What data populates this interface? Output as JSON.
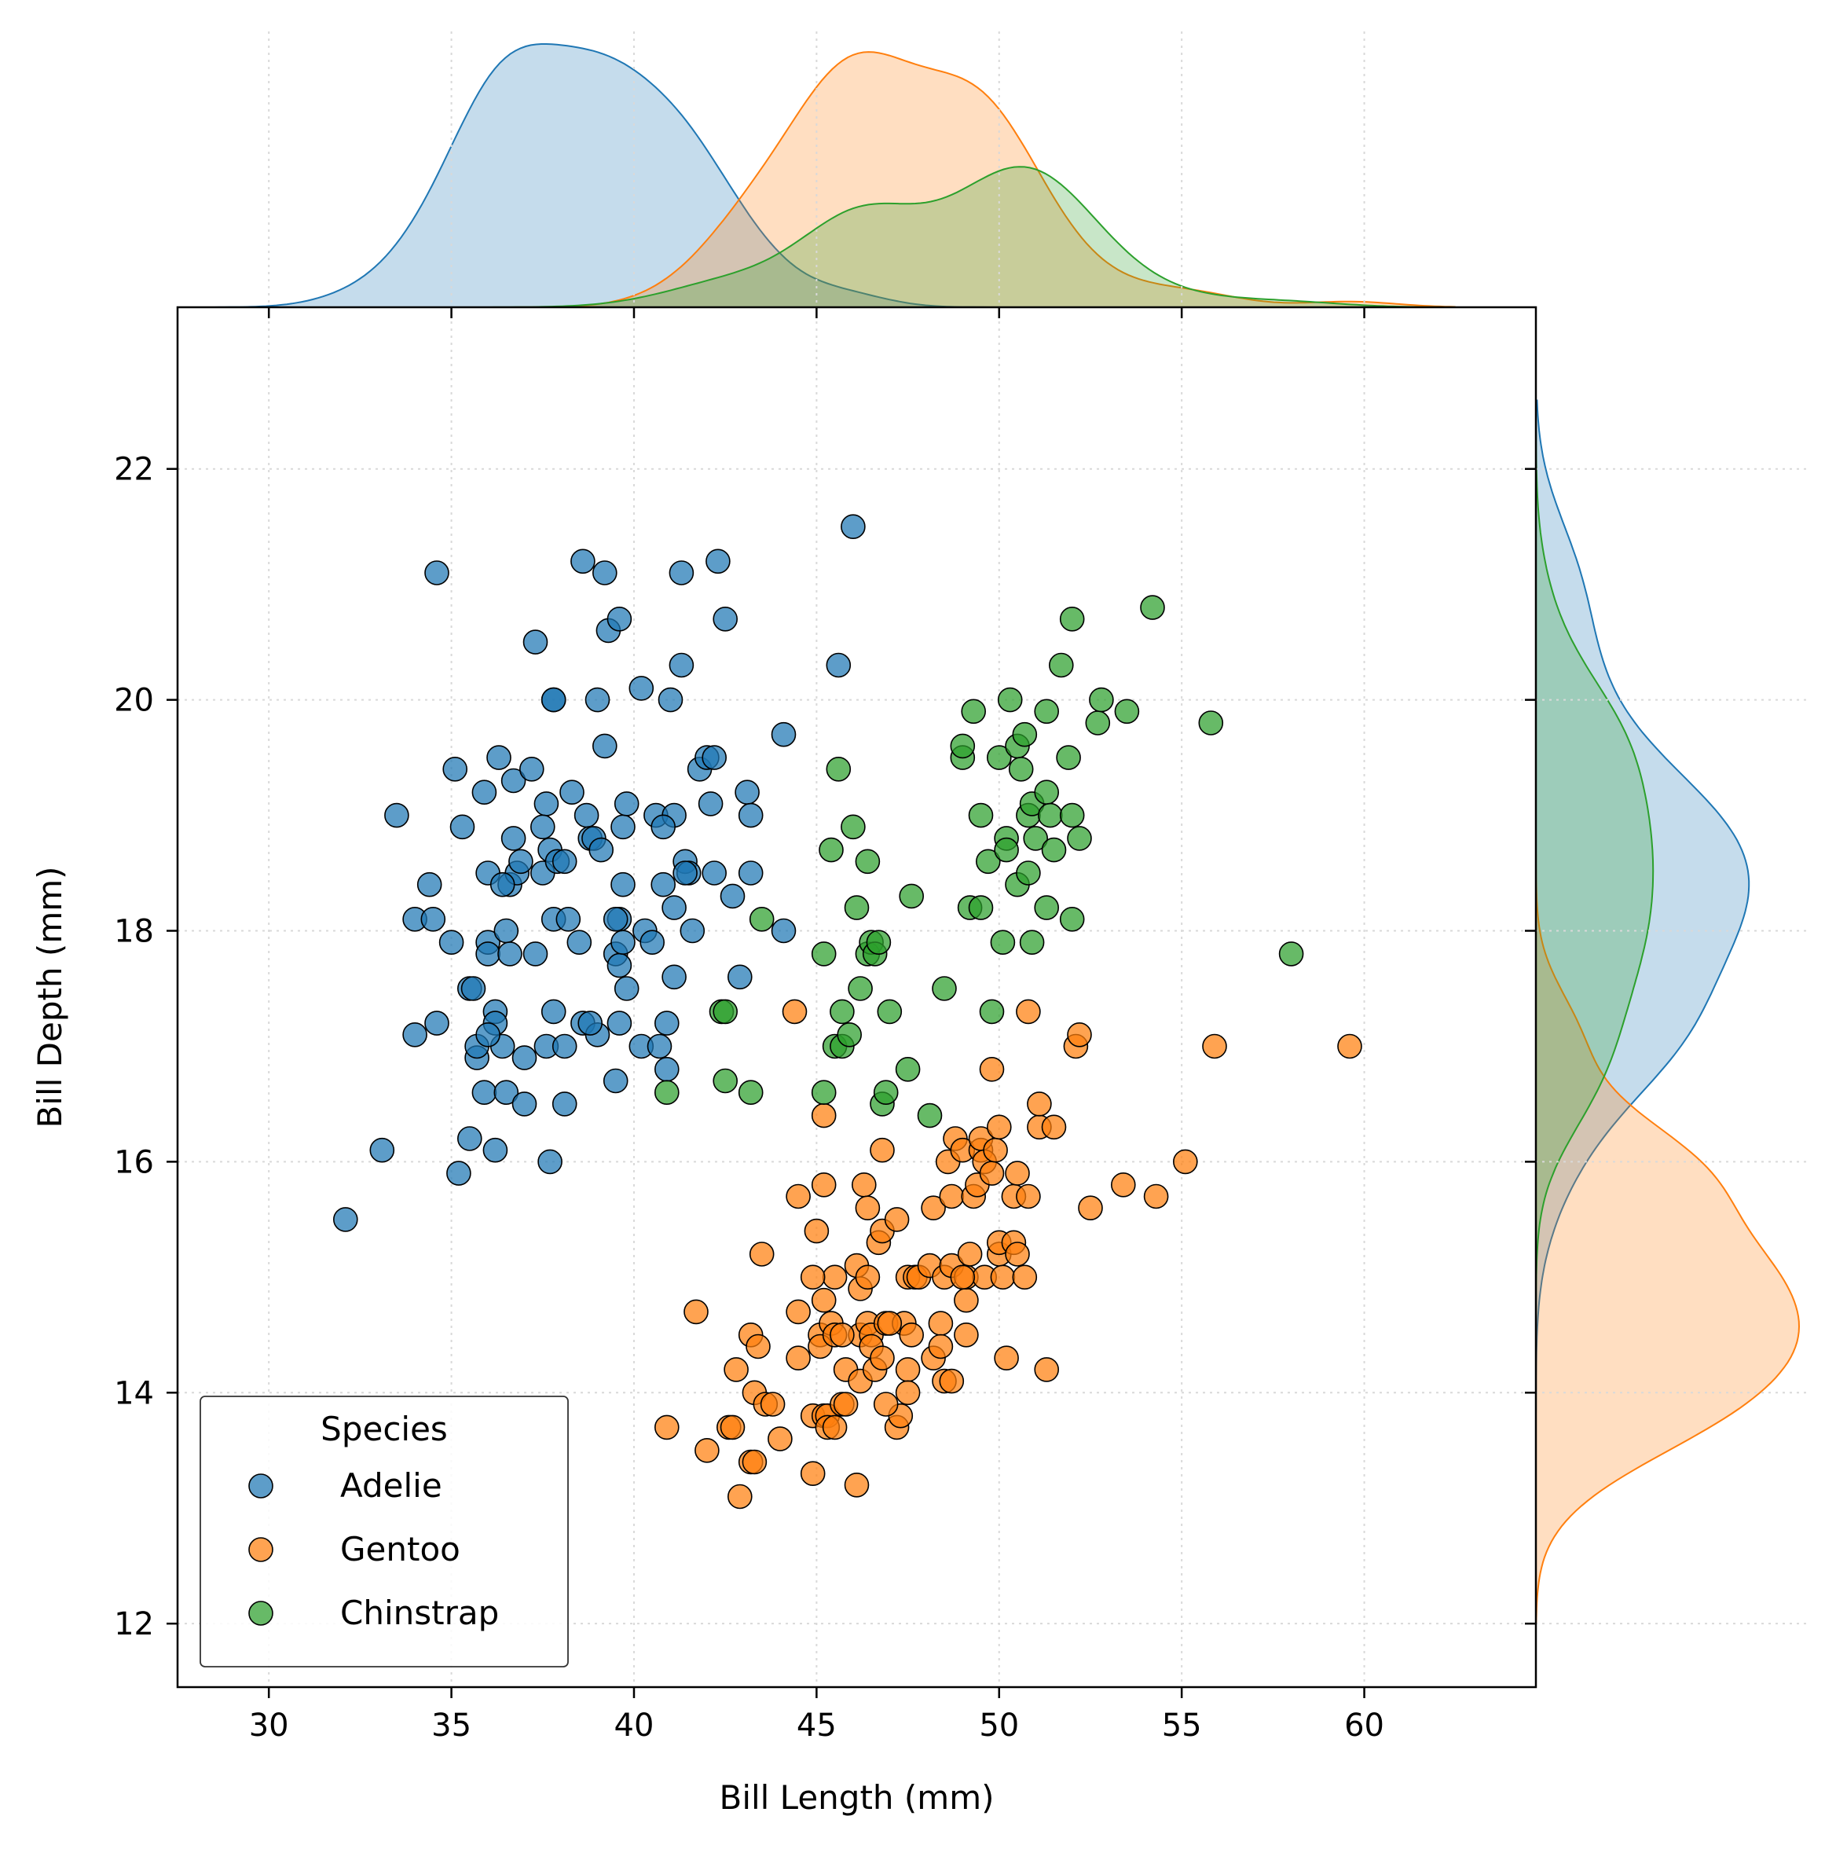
{
  "chart_data": {
    "type": "scatter",
    "xlabel": "Bill Length (mm)",
    "ylabel": "Bill Depth (mm)",
    "xlim": [
      27.5,
      64.7
    ],
    "ylim": [
      11.45,
      23.4
    ],
    "x_ticks": [
      30,
      35,
      40,
      45,
      50,
      55,
      60
    ],
    "y_ticks": [
      12,
      14,
      16,
      18,
      20,
      22
    ],
    "grid": "dotted",
    "marginal": "kde",
    "legend": {
      "title": "Species",
      "placement": "lower-left"
    },
    "series": [
      {
        "name": "Adelie",
        "color": "#1f77b4",
        "points": [
          [
            32.1,
            15.5
          ],
          [
            33.1,
            16.1
          ],
          [
            33.5,
            19.0
          ],
          [
            34.0,
            17.1
          ],
          [
            34.0,
            18.1
          ],
          [
            34.4,
            18.4
          ],
          [
            34.5,
            18.1
          ],
          [
            34.6,
            21.1
          ],
          [
            34.6,
            17.2
          ],
          [
            35.0,
            17.9
          ],
          [
            35.1,
            19.4
          ],
          [
            35.2,
            15.9
          ],
          [
            35.3,
            18.9
          ],
          [
            35.5,
            17.5
          ],
          [
            35.5,
            16.2
          ],
          [
            35.6,
            17.5
          ],
          [
            35.7,
            16.9
          ],
          [
            35.7,
            17.0
          ],
          [
            35.9,
            16.6
          ],
          [
            35.9,
            19.2
          ],
          [
            36.0,
            17.9
          ],
          [
            36.0,
            17.8
          ],
          [
            36.0,
            18.5
          ],
          [
            36.2,
            16.1
          ],
          [
            36.2,
            17.3
          ],
          [
            36.2,
            17.2
          ],
          [
            36.3,
            19.5
          ],
          [
            36.4,
            17.0
          ],
          [
            36.5,
            18.0
          ],
          [
            36.5,
            16.6
          ],
          [
            36.6,
            17.8
          ],
          [
            36.6,
            18.4
          ],
          [
            36.7,
            18.8
          ],
          [
            36.7,
            19.3
          ],
          [
            36.8,
            18.5
          ],
          [
            36.9,
            18.6
          ],
          [
            37.0,
            16.9
          ],
          [
            37.0,
            16.5
          ],
          [
            37.2,
            19.4
          ],
          [
            37.3,
            17.8
          ],
          [
            37.3,
            20.5
          ],
          [
            37.5,
            18.5
          ],
          [
            37.6,
            17.0
          ],
          [
            37.6,
            19.1
          ],
          [
            37.7,
            18.7
          ],
          [
            37.7,
            16.0
          ],
          [
            37.8,
            17.3
          ],
          [
            37.8,
            20.0
          ],
          [
            37.8,
            18.1
          ],
          [
            37.9,
            18.6
          ],
          [
            38.1,
            18.6
          ],
          [
            38.1,
            17.0
          ],
          [
            38.1,
            16.5
          ],
          [
            38.2,
            18.1
          ],
          [
            38.3,
            19.2
          ],
          [
            38.5,
            17.9
          ],
          [
            38.6,
            21.2
          ],
          [
            38.6,
            17.2
          ],
          [
            38.7,
            19.0
          ],
          [
            38.8,
            18.8
          ],
          [
            38.9,
            18.8
          ],
          [
            39.0,
            17.1
          ],
          [
            39.1,
            18.7
          ],
          [
            39.2,
            21.1
          ],
          [
            39.2,
            19.6
          ],
          [
            39.3,
            20.6
          ],
          [
            39.5,
            17.8
          ],
          [
            39.5,
            16.7
          ],
          [
            39.6,
            17.7
          ],
          [
            39.6,
            18.1
          ],
          [
            39.6,
            20.7
          ],
          [
            39.7,
            18.4
          ],
          [
            39.7,
            17.9
          ],
          [
            39.7,
            18.9
          ],
          [
            39.8,
            19.1
          ],
          [
            40.2,
            17.0
          ],
          [
            40.2,
            20.1
          ],
          [
            40.3,
            18.0
          ],
          [
            40.5,
            17.9
          ],
          [
            40.6,
            19.0
          ],
          [
            40.7,
            17.0
          ],
          [
            40.8,
            18.4
          ],
          [
            40.9,
            16.8
          ],
          [
            41.0,
            20.0
          ],
          [
            41.1,
            18.2
          ],
          [
            41.1,
            19.0
          ],
          [
            41.1,
            17.6
          ],
          [
            41.3,
            21.1
          ],
          [
            41.3,
            20.3
          ],
          [
            41.4,
            18.6
          ],
          [
            41.5,
            18.5
          ],
          [
            41.6,
            18.0
          ],
          [
            41.8,
            19.4
          ],
          [
            42.0,
            19.5
          ],
          [
            42.1,
            19.1
          ],
          [
            42.2,
            19.5
          ],
          [
            42.2,
            18.5
          ],
          [
            42.3,
            21.2
          ],
          [
            42.5,
            20.7
          ],
          [
            42.7,
            18.3
          ],
          [
            42.9,
            17.6
          ],
          [
            43.1,
            19.2
          ],
          [
            43.2,
            19.0
          ],
          [
            43.2,
            18.5
          ],
          [
            44.1,
            18.0
          ],
          [
            44.1,
            19.7
          ],
          [
            46.0,
            21.5
          ],
          [
            45.6,
            20.3
          ],
          [
            39.0,
            20.0
          ],
          [
            37.8,
            20.0
          ],
          [
            41.4,
            18.5
          ],
          [
            40.8,
            18.9
          ],
          [
            39.5,
            18.1
          ],
          [
            39.6,
            17.2
          ],
          [
            40.9,
            17.2
          ],
          [
            36.4,
            18.4
          ],
          [
            37.5,
            18.9
          ],
          [
            36.0,
            17.1
          ],
          [
            38.8,
            17.2
          ],
          [
            39.8,
            17.5
          ]
        ]
      },
      {
        "name": "Gentoo",
        "color": "#ff7f0e",
        "points": [
          [
            40.9,
            13.7
          ],
          [
            41.7,
            14.7
          ],
          [
            42.0,
            13.5
          ],
          [
            42.6,
            13.7
          ],
          [
            42.7,
            13.7
          ],
          [
            42.8,
            14.2
          ],
          [
            42.9,
            13.1
          ],
          [
            43.2,
            14.5
          ],
          [
            43.2,
            13.4
          ],
          [
            43.3,
            14.0
          ],
          [
            43.4,
            14.4
          ],
          [
            43.5,
            15.2
          ],
          [
            43.6,
            13.9
          ],
          [
            43.8,
            13.9
          ],
          [
            44.0,
            13.6
          ],
          [
            44.4,
            17.3
          ],
          [
            44.5,
            15.7
          ],
          [
            44.5,
            14.7
          ],
          [
            44.5,
            14.3
          ],
          [
            44.9,
            13.3
          ],
          [
            44.9,
            13.8
          ],
          [
            45.0,
            15.4
          ],
          [
            45.1,
            14.5
          ],
          [
            45.1,
            14.4
          ],
          [
            45.2,
            15.8
          ],
          [
            45.2,
            14.8
          ],
          [
            45.2,
            13.8
          ],
          [
            45.2,
            16.4
          ],
          [
            45.3,
            13.8
          ],
          [
            45.3,
            13.7
          ],
          [
            45.4,
            14.6
          ],
          [
            45.5,
            13.7
          ],
          [
            45.5,
            15.0
          ],
          [
            45.5,
            14.5
          ],
          [
            45.7,
            13.9
          ],
          [
            45.8,
            14.2
          ],
          [
            45.8,
            13.9
          ],
          [
            46.1,
            15.1
          ],
          [
            46.1,
            13.2
          ],
          [
            46.2,
            14.5
          ],
          [
            46.2,
            14.1
          ],
          [
            46.2,
            14.9
          ],
          [
            46.3,
            15.8
          ],
          [
            46.4,
            15.0
          ],
          [
            46.4,
            14.6
          ],
          [
            46.4,
            15.6
          ],
          [
            46.5,
            14.5
          ],
          [
            46.5,
            14.4
          ],
          [
            46.6,
            14.2
          ],
          [
            46.7,
            15.3
          ],
          [
            46.8,
            15.4
          ],
          [
            46.8,
            14.3
          ],
          [
            46.8,
            16.1
          ],
          [
            46.9,
            14.6
          ],
          [
            47.2,
            13.7
          ],
          [
            47.2,
            15.5
          ],
          [
            47.3,
            13.8
          ],
          [
            47.4,
            14.6
          ],
          [
            47.5,
            14.2
          ],
          [
            47.5,
            14.0
          ],
          [
            47.5,
            15.0
          ],
          [
            47.6,
            14.5
          ],
          [
            47.7,
            15.0
          ],
          [
            47.8,
            15.0
          ],
          [
            48.1,
            15.1
          ],
          [
            48.2,
            14.3
          ],
          [
            48.2,
            15.6
          ],
          [
            48.4,
            14.6
          ],
          [
            48.4,
            14.4
          ],
          [
            48.5,
            14.1
          ],
          [
            48.5,
            15.0
          ],
          [
            48.6,
            16.0
          ],
          [
            48.7,
            14.1
          ],
          [
            48.7,
            15.1
          ],
          [
            48.7,
            15.7
          ],
          [
            48.8,
            16.2
          ],
          [
            49.0,
            16.1
          ],
          [
            49.1,
            14.8
          ],
          [
            49.1,
            14.5
          ],
          [
            49.1,
            15.0
          ],
          [
            49.2,
            15.2
          ],
          [
            49.3,
            15.7
          ],
          [
            49.4,
            15.8
          ],
          [
            49.5,
            16.1
          ],
          [
            49.5,
            16.2
          ],
          [
            49.6,
            15.0
          ],
          [
            49.6,
            16.0
          ],
          [
            49.8,
            15.9
          ],
          [
            49.8,
            16.8
          ],
          [
            49.9,
            16.1
          ],
          [
            50.0,
            15.2
          ],
          [
            50.0,
            15.3
          ],
          [
            50.0,
            16.3
          ],
          [
            50.1,
            15.0
          ],
          [
            50.2,
            14.3
          ],
          [
            50.4,
            15.3
          ],
          [
            50.4,
            15.7
          ],
          [
            50.5,
            15.9
          ],
          [
            50.5,
            15.2
          ],
          [
            50.7,
            15.0
          ],
          [
            50.8,
            15.7
          ],
          [
            50.8,
            17.3
          ],
          [
            51.1,
            16.3
          ],
          [
            51.1,
            16.5
          ],
          [
            51.3,
            14.2
          ],
          [
            51.5,
            16.3
          ],
          [
            52.1,
            17.0
          ],
          [
            52.2,
            17.1
          ],
          [
            52.5,
            15.6
          ],
          [
            53.4,
            15.8
          ],
          [
            54.3,
            15.7
          ],
          [
            55.1,
            16.0
          ],
          [
            55.9,
            17.0
          ],
          [
            59.6,
            17.0
          ],
          [
            45.7,
            14.5
          ],
          [
            47.0,
            14.6
          ],
          [
            43.3,
            13.4
          ],
          [
            49.0,
            15.0
          ],
          [
            44.9,
            15.0
          ],
          [
            46.9,
            13.9
          ]
        ]
      },
      {
        "name": "Chinstrap",
        "color": "#2ca02c",
        "points": [
          [
            40.9,
            16.6
          ],
          [
            42.4,
            17.3
          ],
          [
            42.5,
            16.7
          ],
          [
            42.5,
            17.3
          ],
          [
            43.2,
            16.6
          ],
          [
            43.5,
            18.1
          ],
          [
            45.2,
            16.6
          ],
          [
            45.2,
            17.8
          ],
          [
            45.4,
            18.7
          ],
          [
            45.5,
            17.0
          ],
          [
            45.6,
            19.4
          ],
          [
            45.7,
            17.0
          ],
          [
            45.7,
            17.3
          ],
          [
            45.9,
            17.1
          ],
          [
            46.0,
            18.9
          ],
          [
            46.1,
            18.2
          ],
          [
            46.2,
            17.5
          ],
          [
            46.4,
            17.8
          ],
          [
            46.4,
            18.6
          ],
          [
            46.5,
            17.9
          ],
          [
            46.6,
            17.8
          ],
          [
            46.7,
            17.9
          ],
          [
            46.8,
            16.5
          ],
          [
            46.9,
            16.6
          ],
          [
            47.0,
            17.3
          ],
          [
            47.5,
            16.8
          ],
          [
            47.6,
            18.3
          ],
          [
            48.1,
            16.4
          ],
          [
            48.5,
            17.5
          ],
          [
            49.0,
            19.5
          ],
          [
            49.0,
            19.6
          ],
          [
            49.2,
            18.2
          ],
          [
            49.3,
            19.9
          ],
          [
            49.5,
            19.0
          ],
          [
            49.5,
            18.2
          ],
          [
            49.7,
            18.6
          ],
          [
            49.8,
            17.3
          ],
          [
            50.0,
            19.5
          ],
          [
            50.1,
            17.9
          ],
          [
            50.2,
            18.8
          ],
          [
            50.2,
            18.7
          ],
          [
            50.3,
            20.0
          ],
          [
            50.5,
            18.4
          ],
          [
            50.5,
            19.6
          ],
          [
            50.6,
            19.4
          ],
          [
            50.7,
            19.7
          ],
          [
            50.8,
            19.0
          ],
          [
            50.8,
            18.5
          ],
          [
            50.9,
            17.9
          ],
          [
            50.9,
            19.1
          ],
          [
            51.0,
            18.8
          ],
          [
            51.3,
            19.2
          ],
          [
            51.3,
            19.9
          ],
          [
            51.3,
            18.2
          ],
          [
            51.4,
            19.0
          ],
          [
            51.5,
            18.7
          ],
          [
            51.9,
            19.5
          ],
          [
            52.0,
            18.1
          ],
          [
            52.0,
            19.0
          ],
          [
            52.0,
            20.7
          ],
          [
            52.2,
            18.8
          ],
          [
            52.7,
            19.8
          ],
          [
            52.8,
            20.0
          ],
          [
            53.5,
            19.9
          ],
          [
            54.2,
            20.8
          ],
          [
            55.8,
            19.8
          ],
          [
            58.0,
            17.8
          ],
          [
            51.7,
            20.3
          ]
        ]
      }
    ]
  }
}
